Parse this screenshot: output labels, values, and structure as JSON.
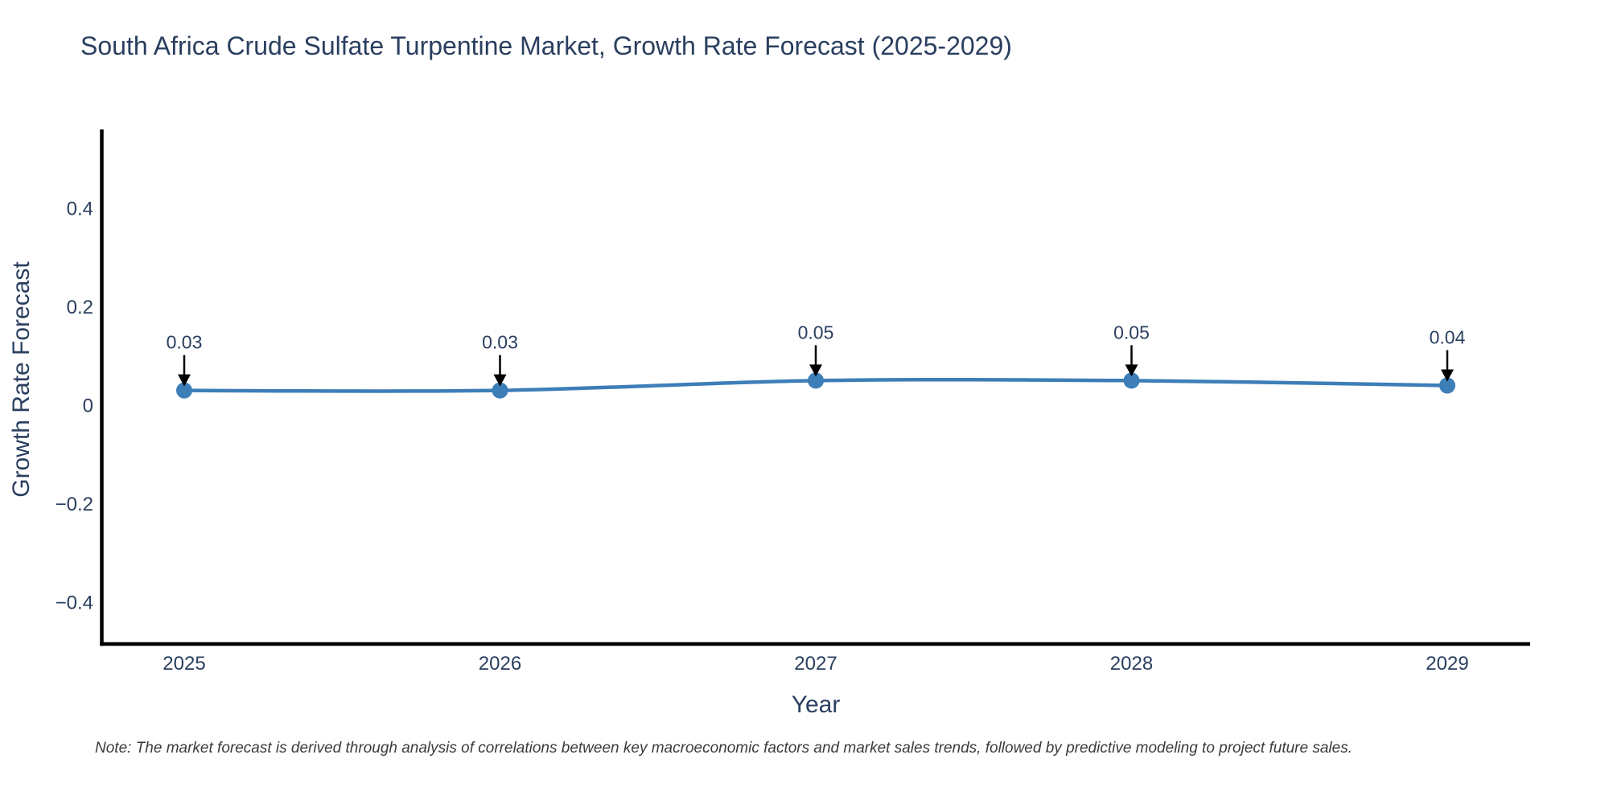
{
  "title": {
    "text": "South Africa Crude Sulfate Turpentine Market, Growth Rate Forecast (2025-2029)"
  },
  "note": {
    "text": "Note: The market forecast is derived through analysis of correlations between key macroeconomic factors and market sales trends, followed by predictive modeling to project future sales."
  },
  "chart_data": {
    "type": "line",
    "title": "South Africa Crude Sulfate Turpentine Market, Growth Rate Forecast (2025-2029)",
    "x": [
      2025,
      2026,
      2027,
      2028,
      2029
    ],
    "series": [
      {
        "name": "Growth Rate Forecast",
        "values": [
          0.03,
          0.03,
          0.05,
          0.05,
          0.04
        ]
      }
    ],
    "point_labels": [
      "0.03",
      "0.03",
      "0.05",
      "0.05",
      "0.04"
    ],
    "xlabel": "Year",
    "ylabel": "Growth Rate Forecast",
    "y_ticks": [
      0.4,
      0.2,
      0,
      -0.2,
      -0.4
    ],
    "ylim": [
      -0.48,
      0.56
    ],
    "xlim": [
      2024.74,
      2029.26
    ],
    "grid": false,
    "legend_position": "none",
    "line_shape": "spline",
    "colors": {
      "line": "#3d7eb8",
      "marker": "#3d7eb8",
      "axis": "#000000",
      "text": "#2a3f5f",
      "annotation_arrow": "#000000",
      "note_text": "#3b3b3b",
      "background": "#ffffff"
    }
  }
}
